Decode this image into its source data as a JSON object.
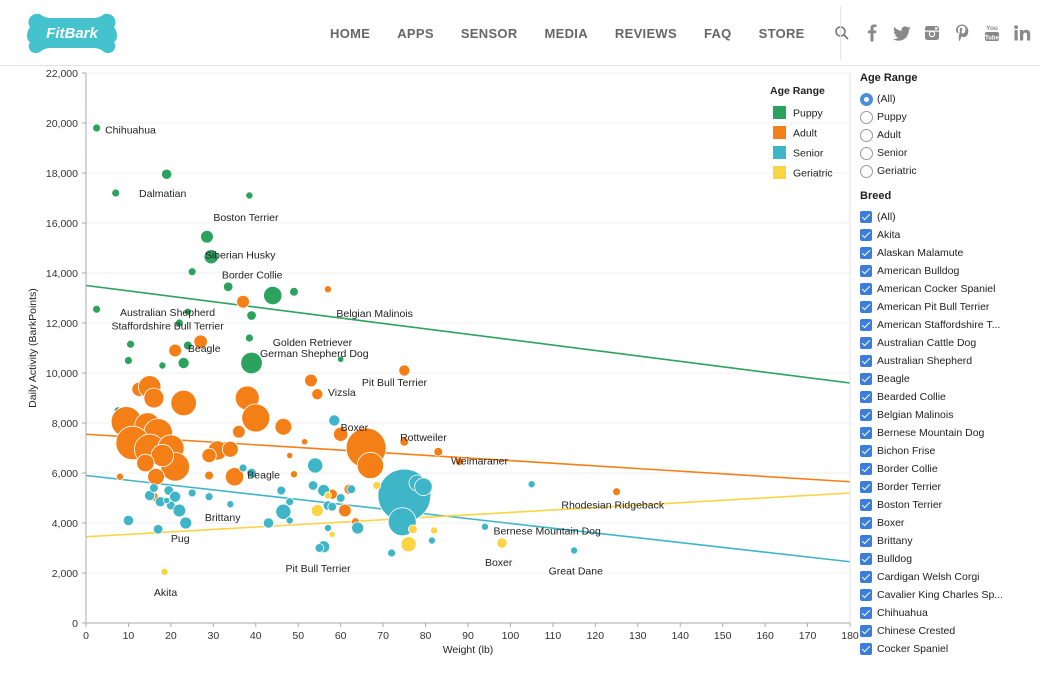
{
  "brand": {
    "logo_text": "FitBark",
    "logo_color": "#44c3cf"
  },
  "nav": {
    "items": [
      "HOME",
      "APPS",
      "SENSOR",
      "MEDIA",
      "REVIEWS",
      "FAQ",
      "STORE"
    ],
    "search_icon": "search-icon"
  },
  "social": [
    "facebook-icon",
    "twitter-icon",
    "instagram-icon",
    "pinterest-icon",
    "youtube-icon",
    "linkedin-icon"
  ],
  "filters": {
    "age_title": "Age Range",
    "age_options": [
      "(All)",
      "Puppy",
      "Adult",
      "Senior",
      "Geriatric"
    ],
    "age_selected": "(All)",
    "breed_title": "Breed",
    "breeds": [
      "(All)",
      "Akita",
      "Alaskan Malamute",
      "American Bulldog",
      "American Cocker Spaniel",
      "American Pit Bull Terrier",
      "American Staffordshire T...",
      "Australian Cattle Dog",
      "Australian Shepherd",
      "Beagle",
      "Bearded Collie",
      "Belgian Malinois",
      "Bernese Mountain Dog",
      "Bichon Frise",
      "Border Collie",
      "Border Terrier",
      "Boston Terrier",
      "Boxer",
      "Brittany",
      "Bulldog",
      "Cardigan Welsh Corgi",
      "Cavalier King Charles Sp...",
      "Chihuahua",
      "Chinese Crested",
      "Cocker Spaniel"
    ]
  },
  "chart_data": {
    "type": "scatter",
    "title": "",
    "xlabel": "Weight (lb)",
    "ylabel": "Daily Activity (BarkPoints)",
    "xlim": [
      0,
      180
    ],
    "ylim": [
      0,
      22000
    ],
    "xticks": [
      0,
      10,
      20,
      30,
      40,
      50,
      60,
      70,
      80,
      90,
      100,
      110,
      120,
      130,
      140,
      150,
      160,
      170,
      180
    ],
    "yticks": [
      0,
      2000,
      4000,
      6000,
      8000,
      10000,
      12000,
      14000,
      16000,
      18000,
      20000,
      22000
    ],
    "ytick_labels": [
      "0",
      "2,000",
      "4,000",
      "6,000",
      "8,000",
      "10,000",
      "12,000",
      "14,000",
      "16,000",
      "18,000",
      "20,000",
      "22,000"
    ],
    "legend": {
      "title": "Age Range",
      "position": "top-right",
      "entries": [
        {
          "name": "Puppy",
          "color": "#2ca25f"
        },
        {
          "name": "Adult",
          "color": "#f57f17"
        },
        {
          "name": "Senior",
          "color": "#3fb5c8"
        },
        {
          "name": "Geriatric",
          "color": "#fbd444"
        }
      ]
    },
    "trendlines": [
      {
        "series": "Puppy",
        "x": [
          0,
          180
        ],
        "y": [
          13500,
          9600
        ]
      },
      {
        "series": "Adult",
        "x": [
          0,
          180
        ],
        "y": [
          7550,
          5650
        ]
      },
      {
        "series": "Senior",
        "x": [
          0,
          180
        ],
        "y": [
          5900,
          2450
        ]
      },
      {
        "series": "Geriatric",
        "x": [
          0,
          180
        ],
        "y": [
          3450,
          5200
        ]
      }
    ],
    "labels": [
      {
        "text": "Chihuahua",
        "x": 4.5,
        "y": 19750
      },
      {
        "text": "Dalmatian",
        "x": 12.5,
        "y": 17200
      },
      {
        "text": "Boston Terrier",
        "x": 30,
        "y": 16250
      },
      {
        "text": "Siberian Husky",
        "x": 28,
        "y": 14750
      },
      {
        "text": "Border Collie",
        "x": 32,
        "y": 13950
      },
      {
        "text": "Australian Shepherd",
        "x": 8,
        "y": 12450
      },
      {
        "text": "Staffordshire Bull Terrier",
        "x": 6,
        "y": 11900
      },
      {
        "text": "Belgian Malinois",
        "x": 59,
        "y": 12400
      },
      {
        "text": "Golden Retriever",
        "x": 44,
        "y": 11250
      },
      {
        "text": "Beagle",
        "x": 24,
        "y": 11000
      },
      {
        "text": "German Shepherd Dog",
        "x": 41,
        "y": 10800
      },
      {
        "text": "Pit Bull Terrier",
        "x": 65,
        "y": 9650
      },
      {
        "text": "Vizsla",
        "x": 57,
        "y": 9250
      },
      {
        "text": "Boxer",
        "x": 60,
        "y": 7850
      },
      {
        "text": "Rottweiler",
        "x": 74,
        "y": 7450
      },
      {
        "text": "Weimaraner",
        "x": 86,
        "y": 6500
      },
      {
        "text": "Beagle",
        "x": 38,
        "y": 5950
      },
      {
        "text": "Rhodesian Ridgeback",
        "x": 112,
        "y": 4750
      },
      {
        "text": "Brittany",
        "x": 28,
        "y": 4250
      },
      {
        "text": "Bernese Mountain Dog",
        "x": 96,
        "y": 3700
      },
      {
        "text": "Pug",
        "x": 20,
        "y": 3400
      },
      {
        "text": "Boxer",
        "x": 94,
        "y": 2450
      },
      {
        "text": "Great Dane",
        "x": 109,
        "y": 2100
      },
      {
        "text": "Pit Bull Terrier",
        "x": 47,
        "y": 2200
      },
      {
        "text": "Akita",
        "x": 16,
        "y": 1250
      }
    ],
    "series": [
      {
        "name": "Puppy",
        "points": [
          [
            2.5,
            19800,
            1
          ],
          [
            7,
            17200,
            1
          ],
          [
            19,
            17950,
            1.3
          ],
          [
            38.5,
            17100,
            0.9
          ],
          [
            28.5,
            15450,
            1.6
          ],
          [
            29.5,
            14650,
            1.8
          ],
          [
            25,
            14050,
            1
          ],
          [
            33.5,
            13450,
            1.2
          ],
          [
            44,
            13100,
            2.3
          ],
          [
            49,
            13250,
            1.1
          ],
          [
            2.5,
            12550,
            1
          ],
          [
            24,
            12450,
            0.9
          ],
          [
            39,
            12300,
            1.2
          ],
          [
            22,
            12000,
            1
          ],
          [
            38.5,
            11400,
            1
          ],
          [
            24,
            11100,
            1.1
          ],
          [
            10.5,
            11150,
            1
          ],
          [
            39,
            10400,
            2.7
          ],
          [
            60,
            10550,
            0.8
          ],
          [
            18,
            10300,
            0.9
          ],
          [
            10,
            10500,
            1
          ],
          [
            23,
            10400,
            1.4
          ],
          [
            14.5,
            9550,
            1.2
          ],
          [
            7.5,
            8500,
            0.9
          ]
        ]
      },
      {
        "name": "Adult",
        "points": [
          [
            57,
            13350,
            0.9
          ],
          [
            37,
            12850,
            1.6
          ],
          [
            27,
            11250,
            1.7
          ],
          [
            21,
            10900,
            1.6
          ],
          [
            75,
            10100,
            1.4
          ],
          [
            53,
            9700,
            1.6
          ],
          [
            54.5,
            9150,
            1.4
          ],
          [
            12.5,
            9350,
            1.8
          ],
          [
            15,
            9450,
            2.8
          ],
          [
            16,
            9000,
            2.5
          ],
          [
            38,
            9000,
            3
          ],
          [
            40,
            8200,
            3.5
          ],
          [
            23,
            8800,
            3.2
          ],
          [
            9.5,
            8050,
            3.8
          ],
          [
            14.5,
            7900,
            3.2
          ],
          [
            17,
            7600,
            3.6
          ],
          [
            11,
            7200,
            4.2
          ],
          [
            15,
            6950,
            3.8
          ],
          [
            20,
            7000,
            3.3
          ],
          [
            46.5,
            7850,
            2.1
          ],
          [
            36,
            7650,
            1.6
          ],
          [
            60,
            7550,
            1.8
          ],
          [
            66,
            7000,
            5
          ],
          [
            75,
            7250,
            1.1
          ],
          [
            83,
            6850,
            1.1
          ],
          [
            88,
            6450,
            1
          ],
          [
            67,
            6300,
            3.3
          ],
          [
            31,
            6900,
            2.4
          ],
          [
            34,
            6950,
            2
          ],
          [
            29,
            6700,
            1.8
          ],
          [
            21,
            6250,
            3.6
          ],
          [
            18,
            6700,
            2.8
          ],
          [
            14,
            6400,
            2.2
          ],
          [
            16.5,
            5850,
            2.1
          ],
          [
            8,
            5850,
            0.9
          ],
          [
            35,
            5850,
            2.3
          ],
          [
            48,
            6700,
            0.8
          ],
          [
            51.5,
            7250,
            0.8
          ],
          [
            49,
            5950,
            0.9
          ],
          [
            62,
            5350,
            1.3
          ],
          [
            58,
            5150,
            1.3
          ],
          [
            61,
            4500,
            1.6
          ],
          [
            63.5,
            4050,
            1
          ],
          [
            10,
            4050,
            1
          ],
          [
            16,
            5050,
            1.1
          ],
          [
            125,
            5250,
            1
          ],
          [
            29,
            5900,
            1.1
          ]
        ]
      },
      {
        "name": "Senior",
        "points": [
          [
            58.5,
            8100,
            1.4
          ],
          [
            75,
            5100,
            6.6
          ],
          [
            74.5,
            4050,
            3.5
          ],
          [
            54,
            6300,
            1.9
          ],
          [
            78,
            5600,
            2
          ],
          [
            79.5,
            5450,
            2.2
          ],
          [
            60,
            5000,
            1.1
          ],
          [
            62.5,
            5350,
            1.1
          ],
          [
            53.5,
            5500,
            1.2
          ],
          [
            56,
            5300,
            1.5
          ],
          [
            57,
            4700,
            1.2
          ],
          [
            58,
            4650,
            1.1
          ],
          [
            46,
            5300,
            1.1
          ],
          [
            46.5,
            4450,
            1.9
          ],
          [
            48,
            4850,
            1
          ],
          [
            48,
            4100,
            0.9
          ],
          [
            64,
            3800,
            1.5
          ],
          [
            57,
            3800,
            0.9
          ],
          [
            56,
            3050,
            1.5
          ],
          [
            55,
            3000,
            1.1
          ],
          [
            43,
            4000,
            1.3
          ],
          [
            34,
            4750,
            0.9
          ],
          [
            29,
            5050,
            1
          ],
          [
            25,
            5200,
            1
          ],
          [
            19.5,
            5300,
            1.2
          ],
          [
            21,
            5050,
            1.4
          ],
          [
            15,
            5100,
            1.3
          ],
          [
            16,
            5400,
            1.1
          ],
          [
            17.5,
            4850,
            1.3
          ],
          [
            20,
            4700,
            1.1
          ],
          [
            22,
            4500,
            1.6
          ],
          [
            23.5,
            4000,
            1.5
          ],
          [
            17,
            3750,
            1.2
          ],
          [
            10,
            4100,
            1.3
          ],
          [
            19,
            4900,
            0.8
          ],
          [
            81.5,
            3300,
            0.9
          ],
          [
            72,
            2800,
            1
          ],
          [
            94,
            3850,
            0.9
          ],
          [
            105,
            5550,
            0.9
          ],
          [
            115,
            2900,
            0.9
          ],
          [
            39,
            6000,
            1.2
          ],
          [
            37,
            6200,
            1
          ]
        ]
      },
      {
        "name": "Geriatric",
        "points": [
          [
            54.5,
            4500,
            1.5
          ],
          [
            68.5,
            5500,
            1
          ],
          [
            76,
            3150,
            1.9
          ],
          [
            77,
            3750,
            1.1
          ],
          [
            82,
            3700,
            0.9
          ],
          [
            98,
            3200,
            1.3
          ],
          [
            58,
            3550,
            0.8
          ],
          [
            57,
            5100,
            0.9
          ],
          [
            18.5,
            2050,
            0.9
          ]
        ]
      }
    ]
  }
}
